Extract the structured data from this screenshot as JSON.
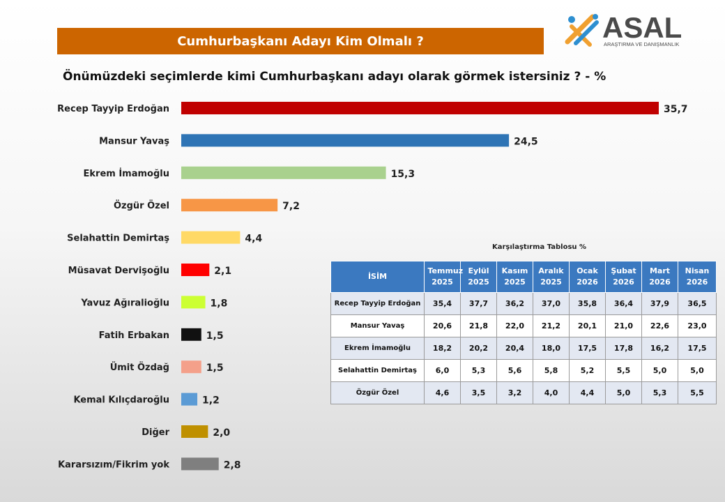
{
  "header": {
    "title": "Cumhurbaşkanı Adayı Kim Olmalı ?",
    "logo_text": "ASAL",
    "logo_subtext": "ARAŞTIRMA VE DANIŞMANLIK"
  },
  "subtitle": "Önümüzdeki seçimlerde kimi Cumhurbaşkanı adayı olarak görmek istersiniz ? - %",
  "chart_data": {
    "type": "bar",
    "orientation": "horizontal",
    "title": "Önümüzdeki seçimlerde kimi Cumhurbaşkanı adayı olarak görmek istersiniz ? - %",
    "categories": [
      "Recep Tayyip Erdoğan",
      "Mansur Yavaş",
      "Ekrem İmamoğlu",
      "Özgür Özel",
      "Selahattin Demirtaş",
      "Müsavat Dervişoğlu",
      "Yavuz Ağıralioğlu",
      "Fatih Erbakan",
      "Ümit Özdağ",
      "Kemal Kılıçdaroğlu",
      "Diğer",
      "Kararsızım/Fikrim yok"
    ],
    "values": [
      35.7,
      24.5,
      15.3,
      7.2,
      4.4,
      2.1,
      1.8,
      1.5,
      1.5,
      1.2,
      2.0,
      2.8
    ],
    "value_labels": [
      "35,7",
      "24,5",
      "15,3",
      "7,2",
      "4,4",
      "2,1",
      "1,8",
      "1,5",
      "1,5",
      "1,2",
      "2,0",
      "2,8"
    ],
    "colors": [
      "#c00000",
      "#2e74b5",
      "#a9d18e",
      "#f79646",
      "#ffd966",
      "#ff0000",
      "#ccff33",
      "#111111",
      "#f4a08a",
      "#5b9bd5",
      "#bf9000",
      "#7f7f7f"
    ],
    "xlim": [
      0,
      36
    ],
    "grid": false,
    "legend": "none"
  },
  "comparison_table": {
    "caption": "Karşılaştırma Tablosu %",
    "headers": [
      "İSİM",
      "Temmuz 2025",
      "Eylül 2025",
      "Kasım 2025",
      "Aralık 2025",
      "Ocak 2026",
      "Şubat 2026",
      "Mart 2026",
      "Nisan 2026"
    ],
    "rows": [
      [
        "Recep Tayyip Erdoğan",
        "35,4",
        "37,7",
        "36,2",
        "37,0",
        "35,8",
        "36,4",
        "37,9",
        "36,5"
      ],
      [
        "Mansur Yavaş",
        "20,6",
        "21,8",
        "22,0",
        "21,2",
        "20,1",
        "21,0",
        "22,6",
        "23,0"
      ],
      [
        "Ekrem İmamoğlu",
        "18,2",
        "20,2",
        "20,4",
        "18,0",
        "17,5",
        "17,8",
        "16,2",
        "17,5"
      ],
      [
        "Selahattin Demirtaş",
        "6,0",
        "5,3",
        "5,6",
        "5,8",
        "5,2",
        "5,5",
        "5,0",
        "5,0"
      ],
      [
        "Özgür Özel",
        "4,6",
        "3,5",
        "3,2",
        "4,0",
        "4,4",
        "5,0",
        "5,3",
        "5,5"
      ]
    ],
    "header_color": "#3b79c0",
    "stripe_color": "#e3e8f2"
  }
}
